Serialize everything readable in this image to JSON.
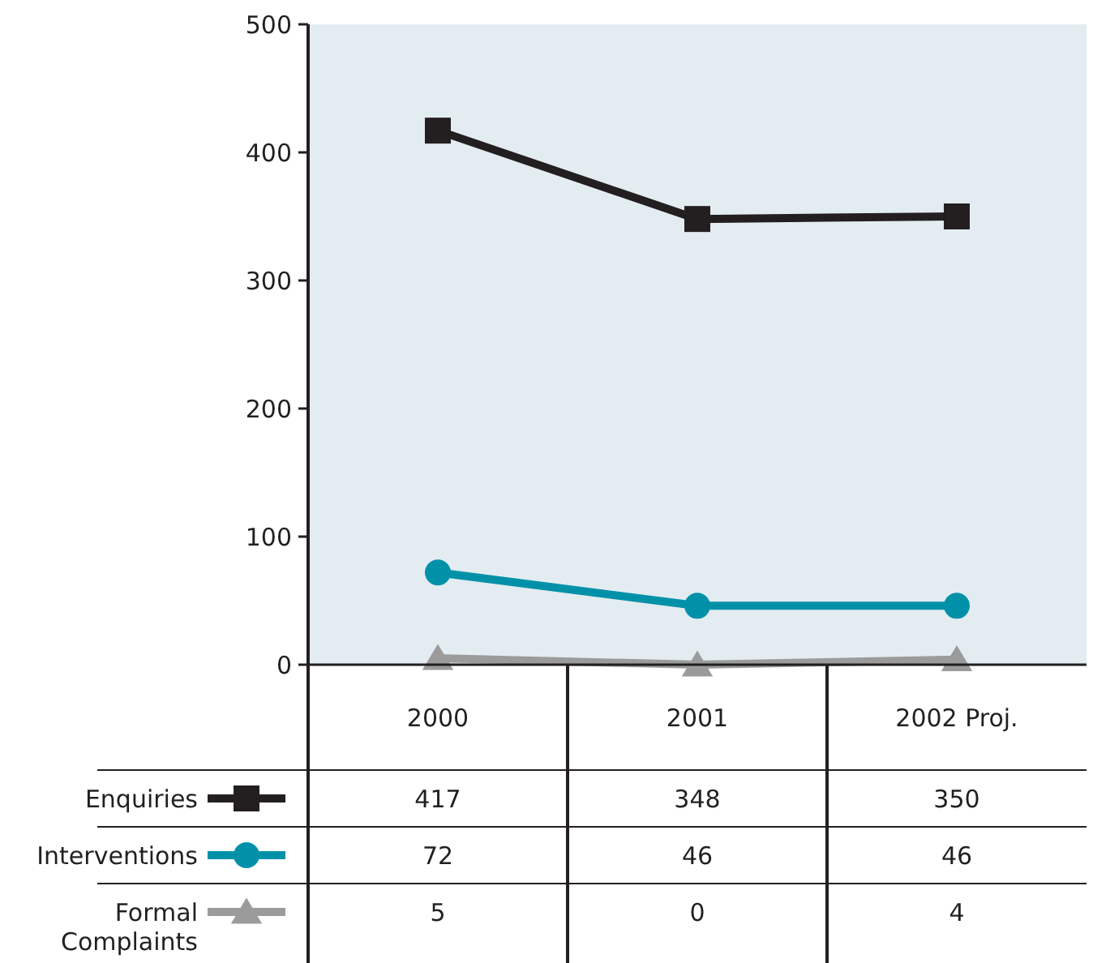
{
  "chart_data": {
    "type": "line",
    "categories": [
      "2000",
      "2001",
      "2002 Proj."
    ],
    "series": [
      {
        "name": "Enquiries",
        "color": "#231f20",
        "marker": "square",
        "values": [
          417,
          348,
          350
        ]
      },
      {
        "name": "Interventions",
        "color": "#0091a9",
        "marker": "circle",
        "values": [
          72,
          46,
          46
        ]
      },
      {
        "name": "Formal Complaints",
        "color": "#9b9b9b",
        "marker": "triangle",
        "values": [
          5,
          0,
          4
        ]
      }
    ],
    "ylim": [
      0,
      500
    ],
    "yticks": [
      0,
      100,
      200,
      300,
      400,
      500
    ],
    "grid": false,
    "legend": "bottom left",
    "data_labels": true,
    "line_style": "solid"
  }
}
